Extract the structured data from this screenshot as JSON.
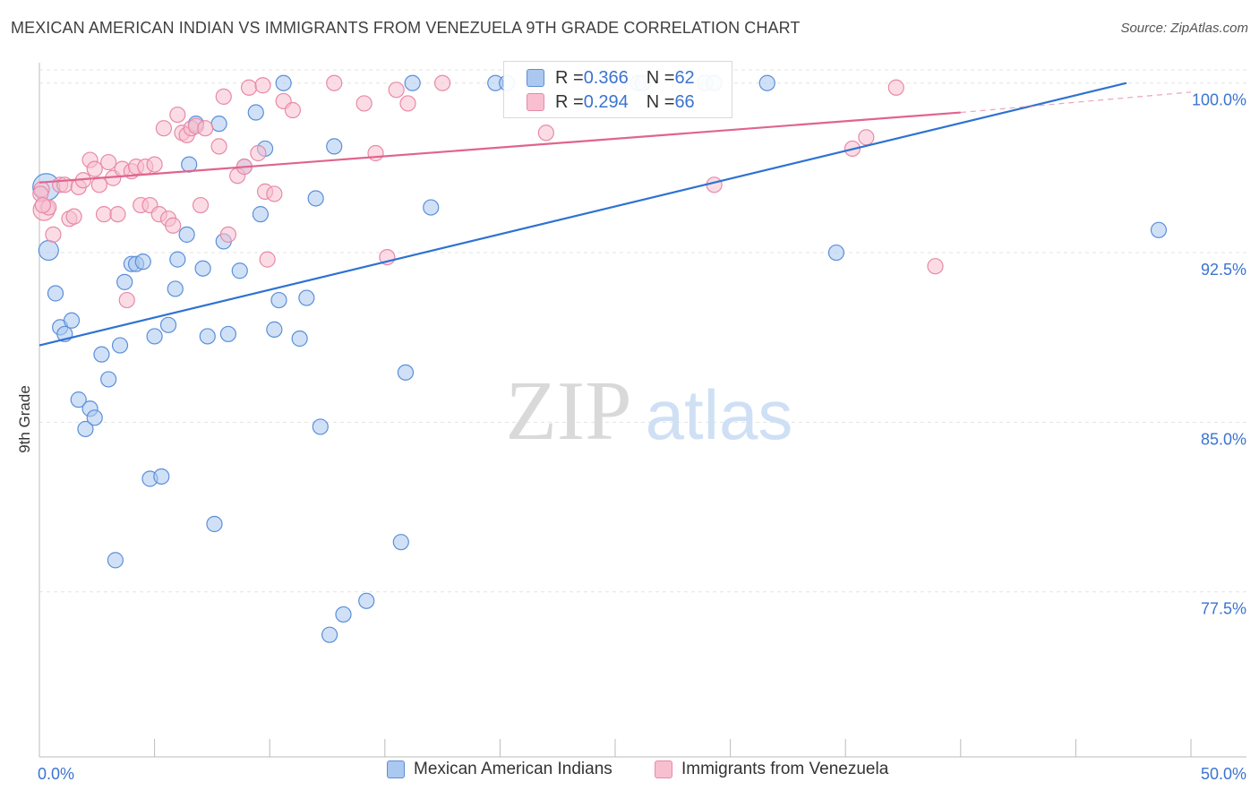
{
  "header": {
    "title": "MEXICAN AMERICAN INDIAN VS IMMIGRANTS FROM VENEZUELA 9TH GRADE CORRELATION CHART",
    "source": "Source: ZipAtlas.com"
  },
  "watermark": {
    "zip": "ZIP",
    "atlas": "atlas"
  },
  "stats": [
    {
      "r_label": "R = ",
      "r_value": "0.366",
      "n_label": "N = ",
      "n_value": "62"
    },
    {
      "r_label": "R = ",
      "r_value": "0.294",
      "n_label": "N = ",
      "n_value": "66"
    }
  ],
  "legend": {
    "series1": "Mexican American Indians",
    "series2": "Immigrants from Venezuela"
  },
  "colors": {
    "blue_fill": "#aac8f0",
    "blue_stroke": "#5b8fd8",
    "blue_line": "#2e72d2",
    "pink_fill": "#f8bfd0",
    "pink_stroke": "#e889a8",
    "pink_line": "#e0648e",
    "tick_text": "#3b74d0",
    "grid": "#e3e3e3"
  },
  "chart_data": {
    "type": "scatter",
    "title": "MEXICAN AMERICAN INDIAN VS IMMIGRANTS FROM VENEZUELA 9TH GRADE CORRELATION CHART",
    "xlabel": "",
    "ylabel": "9th Grade",
    "xlim": [
      0,
      50
    ],
    "ylim": [
      70.2,
      100.9
    ],
    "x_tick_labels": [
      {
        "value": 0,
        "label": "0.0%"
      },
      {
        "value": 50,
        "label": "50.0%"
      }
    ],
    "x_minor_ticks": [
      0,
      5,
      10,
      15,
      20,
      25,
      30,
      35,
      40,
      45,
      50
    ],
    "y_ticks": [
      {
        "value": 77.5,
        "label": "77.5%"
      },
      {
        "value": 85.0,
        "label": "85.0%"
      },
      {
        "value": 92.5,
        "label": "92.5%"
      },
      {
        "value": 100.0,
        "label": "100.0%"
      }
    ],
    "grid": true,
    "series": [
      {
        "name": "Mexican American Indians",
        "R": 0.366,
        "N": 62,
        "trend": {
          "x": [
            0,
            47.2
          ],
          "y": [
            88.4,
            100.0
          ]
        },
        "points": [
          [
            0.3,
            95.4
          ],
          [
            0.4,
            92.6
          ],
          [
            0.7,
            90.7
          ],
          [
            0.9,
            89.2
          ],
          [
            1.1,
            88.9
          ],
          [
            1.4,
            89.5
          ],
          [
            1.7,
            86.0
          ],
          [
            2.0,
            84.7
          ],
          [
            2.2,
            85.6
          ],
          [
            2.4,
            85.2
          ],
          [
            2.7,
            88.0
          ],
          [
            3.0,
            86.9
          ],
          [
            3.3,
            78.9
          ],
          [
            3.5,
            88.4
          ],
          [
            3.7,
            91.2
          ],
          [
            4.0,
            92.0
          ],
          [
            4.2,
            92.0
          ],
          [
            4.5,
            92.1
          ],
          [
            4.8,
            82.5
          ],
          [
            5.0,
            88.8
          ],
          [
            5.3,
            82.6
          ],
          [
            5.6,
            89.3
          ],
          [
            5.9,
            90.9
          ],
          [
            6.0,
            92.2
          ],
          [
            6.4,
            93.3
          ],
          [
            6.5,
            96.4
          ],
          [
            6.8,
            98.2
          ],
          [
            7.1,
            91.8
          ],
          [
            7.3,
            88.8
          ],
          [
            7.6,
            80.5
          ],
          [
            7.8,
            98.2
          ],
          [
            8.0,
            93.0
          ],
          [
            8.2,
            88.9
          ],
          [
            8.7,
            91.7
          ],
          [
            8.9,
            96.3
          ],
          [
            9.4,
            98.7
          ],
          [
            9.6,
            94.2
          ],
          [
            9.8,
            97.1
          ],
          [
            10.2,
            89.1
          ],
          [
            10.4,
            90.4
          ],
          [
            10.6,
            100.0
          ],
          [
            11.3,
            88.7
          ],
          [
            11.6,
            90.5
          ],
          [
            12.0,
            94.9
          ],
          [
            12.2,
            84.8
          ],
          [
            12.6,
            75.6
          ],
          [
            12.8,
            97.2
          ],
          [
            13.2,
            76.5
          ],
          [
            14.2,
            77.1
          ],
          [
            15.7,
            79.7
          ],
          [
            15.9,
            87.2
          ],
          [
            16.2,
            100.0
          ],
          [
            17.0,
            94.5
          ],
          [
            19.8,
            100.0
          ],
          [
            20.3,
            100.0
          ],
          [
            26.0,
            100.0
          ],
          [
            26.2,
            100.0
          ],
          [
            28.9,
            100.0
          ],
          [
            29.3,
            100.0
          ],
          [
            31.6,
            100.0
          ],
          [
            34.6,
            92.5
          ],
          [
            48.6,
            93.5
          ]
        ]
      },
      {
        "name": "Immigrants from Venezuela",
        "R": 0.294,
        "N": 66,
        "trend": {
          "x": [
            0,
            40.0
          ],
          "y": [
            95.6,
            98.7
          ]
        },
        "trend_extension": {
          "x": [
            40.0,
            50.0
          ],
          "y": [
            98.7,
            99.6
          ]
        },
        "points": [
          [
            0.1,
            95.3
          ],
          [
            0.2,
            94.4
          ],
          [
            0.4,
            94.5
          ],
          [
            0.6,
            93.3
          ],
          [
            0.9,
            95.5
          ],
          [
            1.1,
            95.5
          ],
          [
            1.3,
            94.0
          ],
          [
            1.5,
            94.1
          ],
          [
            1.7,
            95.4
          ],
          [
            1.9,
            95.7
          ],
          [
            2.2,
            96.6
          ],
          [
            2.4,
            96.2
          ],
          [
            2.6,
            95.5
          ],
          [
            2.8,
            94.2
          ],
          [
            3.0,
            96.5
          ],
          [
            3.2,
            95.8
          ],
          [
            3.4,
            94.2
          ],
          [
            3.6,
            96.2
          ],
          [
            3.8,
            90.4
          ],
          [
            4.0,
            96.1
          ],
          [
            4.2,
            96.3
          ],
          [
            4.4,
            94.6
          ],
          [
            4.6,
            96.3
          ],
          [
            4.8,
            94.6
          ],
          [
            5.0,
            96.4
          ],
          [
            5.2,
            94.2
          ],
          [
            5.4,
            98.0
          ],
          [
            5.6,
            94.0
          ],
          [
            5.8,
            93.7
          ],
          [
            6.0,
            98.6
          ],
          [
            6.2,
            97.8
          ],
          [
            6.4,
            97.7
          ],
          [
            6.6,
            98.0
          ],
          [
            6.8,
            98.1
          ],
          [
            7.0,
            94.6
          ],
          [
            7.2,
            98.0
          ],
          [
            7.8,
            97.2
          ],
          [
            8.0,
            99.4
          ],
          [
            8.2,
            93.3
          ],
          [
            8.6,
            95.9
          ],
          [
            8.9,
            96.3
          ],
          [
            9.1,
            99.8
          ],
          [
            9.5,
            96.9
          ],
          [
            9.7,
            99.9
          ],
          [
            9.8,
            95.2
          ],
          [
            9.9,
            92.2
          ],
          [
            10.2,
            95.1
          ],
          [
            10.6,
            99.2
          ],
          [
            11.0,
            98.8
          ],
          [
            12.8,
            100.0
          ],
          [
            14.1,
            99.1
          ],
          [
            14.6,
            96.9
          ],
          [
            15.1,
            92.3
          ],
          [
            15.5,
            99.7
          ],
          [
            16.0,
            99.1
          ],
          [
            17.5,
            100.0
          ],
          [
            21.4,
            100.0
          ],
          [
            22.0,
            97.8
          ],
          [
            25.2,
            100.0
          ],
          [
            29.3,
            95.5
          ],
          [
            35.3,
            97.1
          ],
          [
            35.9,
            97.6
          ],
          [
            37.2,
            99.8
          ],
          [
            38.9,
            91.9
          ],
          [
            0.05,
            95.1
          ],
          [
            0.15,
            94.6
          ]
        ]
      }
    ]
  }
}
